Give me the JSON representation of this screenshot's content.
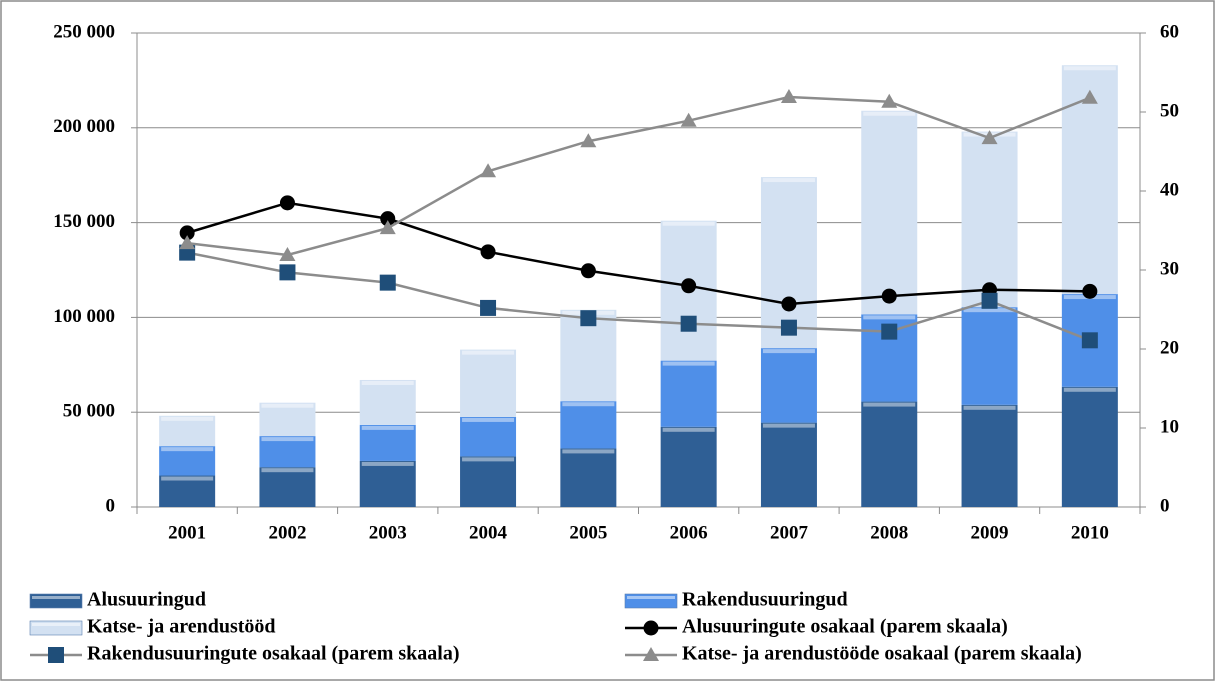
{
  "chart_data": {
    "type": "bar",
    "stacked": true,
    "categories": [
      "2001",
      "2002",
      "2003",
      "2004",
      "2005",
      "2006",
      "2007",
      "2008",
      "2009",
      "2010"
    ],
    "ylim": [
      0,
      250000
    ],
    "yticks": [
      0,
      {
        "value": 50000,
        "label": "50 000"
      },
      {
        "value": 100000,
        "label": "100 000"
      },
      {
        "value": 150000,
        "label": "150 000"
      },
      {
        "value": 200000,
        "label": "200 000"
      },
      {
        "value": 250000,
        "label": "250 000"
      }
    ],
    "y2lim": [
      0,
      60
    ],
    "y2ticks": [
      0,
      10,
      20,
      30,
      40,
      50,
      60
    ],
    "grid": true,
    "legend": "bottom",
    "series": [
      {
        "name": "Alusuuringud",
        "type": "bar",
        "color": "#2f5f95",
        "values": [
          16600,
          21000,
          24300,
          26700,
          30900,
          42300,
          44500,
          55600,
          53900,
          63400
        ]
      },
      {
        "name": "Rakendusuuringud",
        "type": "bar",
        "color": "#4f8fe8",
        "values": [
          15500,
          16400,
          19000,
          20800,
          24900,
          34900,
          39300,
          46000,
          51500,
          48900
        ]
      },
      {
        "name": "Katse- ja arendustööd",
        "type": "bar",
        "color": "#d3e1f2",
        "values": [
          16000,
          17600,
          23700,
          35500,
          48200,
          73800,
          90200,
          107400,
          92600,
          120700
        ]
      },
      {
        "name": "Alusuuringute osakaal (parem skaala)",
        "type": "line",
        "axis": "y2",
        "color": "#000000",
        "marker": "circle",
        "marker_color": "#000000",
        "values": [
          34.7,
          38.5,
          36.5,
          32.3,
          29.9,
          28.0,
          25.7,
          26.7,
          27.5,
          27.3
        ]
      },
      {
        "name": "Rakendusuuringute osakaal (parem skaala)",
        "type": "line",
        "axis": "y2",
        "color": "#8c8c8c",
        "marker": "square",
        "marker_color": "#1f4e79",
        "values": [
          32.2,
          29.7,
          28.4,
          25.2,
          23.9,
          23.2,
          22.7,
          22.2,
          26.1,
          21.1
        ]
      },
      {
        "name": "Katse- ja arendustööde osakaal (parem skaala)",
        "type": "line",
        "axis": "y2",
        "color": "#8c8c8c",
        "marker": "triangle",
        "marker_color": "#8c8c8c",
        "values": [
          33.4,
          31.9,
          35.3,
          42.5,
          46.3,
          48.9,
          51.9,
          51.3,
          46.7,
          51.8
        ]
      }
    ]
  }
}
